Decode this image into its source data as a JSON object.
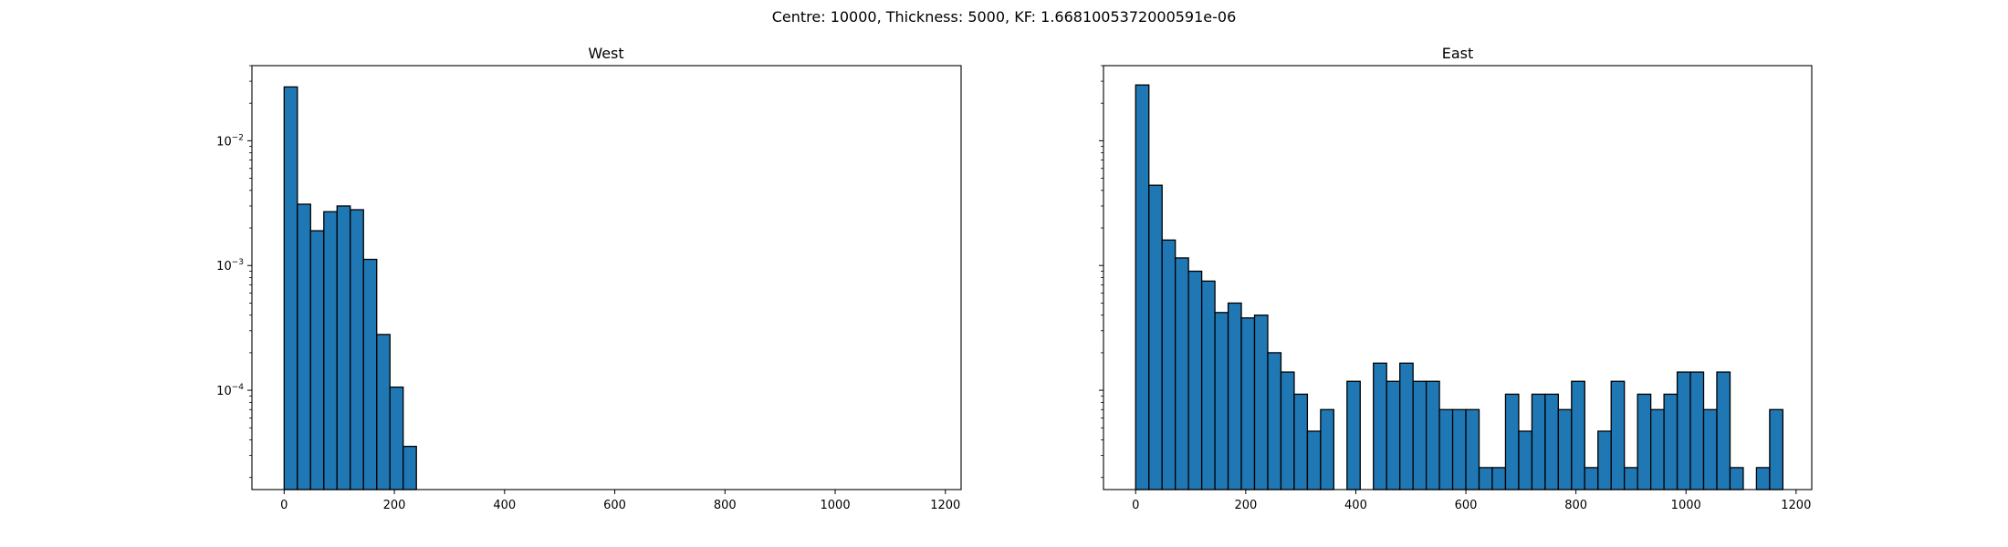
{
  "figure": {
    "suptitle": "Centre: 10000, Thickness: 5000, KF: 1.6681005372000591e-06",
    "bar_color": "#1f77b4",
    "edge_color": "#000000"
  },
  "chart_data": [
    {
      "type": "bar",
      "title": "West",
      "xlabel": "",
      "ylabel": "",
      "yscale": "log",
      "xlim": [
        -58.5,
        1228.5
      ],
      "ylim": [
        1.6e-05,
        0.04
      ],
      "xticks": [
        0,
        200,
        400,
        600,
        800,
        1000,
        1200
      ],
      "yticks": [
        0.0001,
        0.001,
        0.01
      ],
      "ytick_labels": [
        {
          "base": "10",
          "exp": "−4"
        },
        {
          "base": "10",
          "exp": "−3"
        },
        {
          "base": "10",
          "exp": "−2"
        }
      ],
      "bin_edges": [
        0,
        24,
        48,
        72,
        96,
        120,
        144,
        168,
        192,
        216,
        240
      ],
      "values": [
        0.027,
        0.0031,
        0.0019,
        0.0027,
        0.003,
        0.0028,
        0.00112,
        0.00028,
        0.000106,
        3.55e-05
      ]
    },
    {
      "type": "bar",
      "title": "East",
      "xlabel": "",
      "ylabel": "",
      "yscale": "log",
      "xlim": [
        -58.5,
        1228.5
      ],
      "ylim": [
        1.6e-05,
        0.04
      ],
      "xticks": [
        0,
        200,
        400,
        600,
        800,
        1000,
        1200
      ],
      "yticks": [
        0.0001,
        0.001,
        0.01
      ],
      "ytick_labels": [],
      "bin_edges": [
        0,
        24,
        48,
        72,
        96,
        120,
        144,
        168,
        192,
        216,
        240,
        264,
        288,
        312,
        336,
        360,
        384,
        408,
        432,
        456,
        480,
        504,
        528,
        552,
        576,
        600,
        624,
        648,
        672,
        696,
        720,
        744,
        768,
        792,
        816,
        840,
        864,
        888,
        912,
        936,
        960,
        984,
        1008,
        1032,
        1056,
        1080,
        1104,
        1128,
        1152,
        1176
      ],
      "values": [
        0.028,
        0.0044,
        0.0016,
        0.00115,
        0.0009,
        0.00075,
        0.00042,
        0.0005,
        0.00038,
        0.0004,
        0.0002,
        0.00014,
        9.3e-05,
        4.7e-05,
        7e-05,
        0,
        0.000118,
        0,
        0.000165,
        0.000118,
        0.000165,
        0.000118,
        0.000118,
        7e-05,
        7e-05,
        7e-05,
        2.4e-05,
        2.4e-05,
        9.3e-05,
        4.7e-05,
        9.3e-05,
        9.3e-05,
        7e-05,
        0.000118,
        2.4e-05,
        4.7e-05,
        0.000118,
        2.4e-05,
        9.3e-05,
        7e-05,
        9.3e-05,
        0.00014,
        0.00014,
        7e-05,
        0.00014,
        2.4e-05,
        0,
        2.4e-05,
        7e-05
      ]
    }
  ]
}
